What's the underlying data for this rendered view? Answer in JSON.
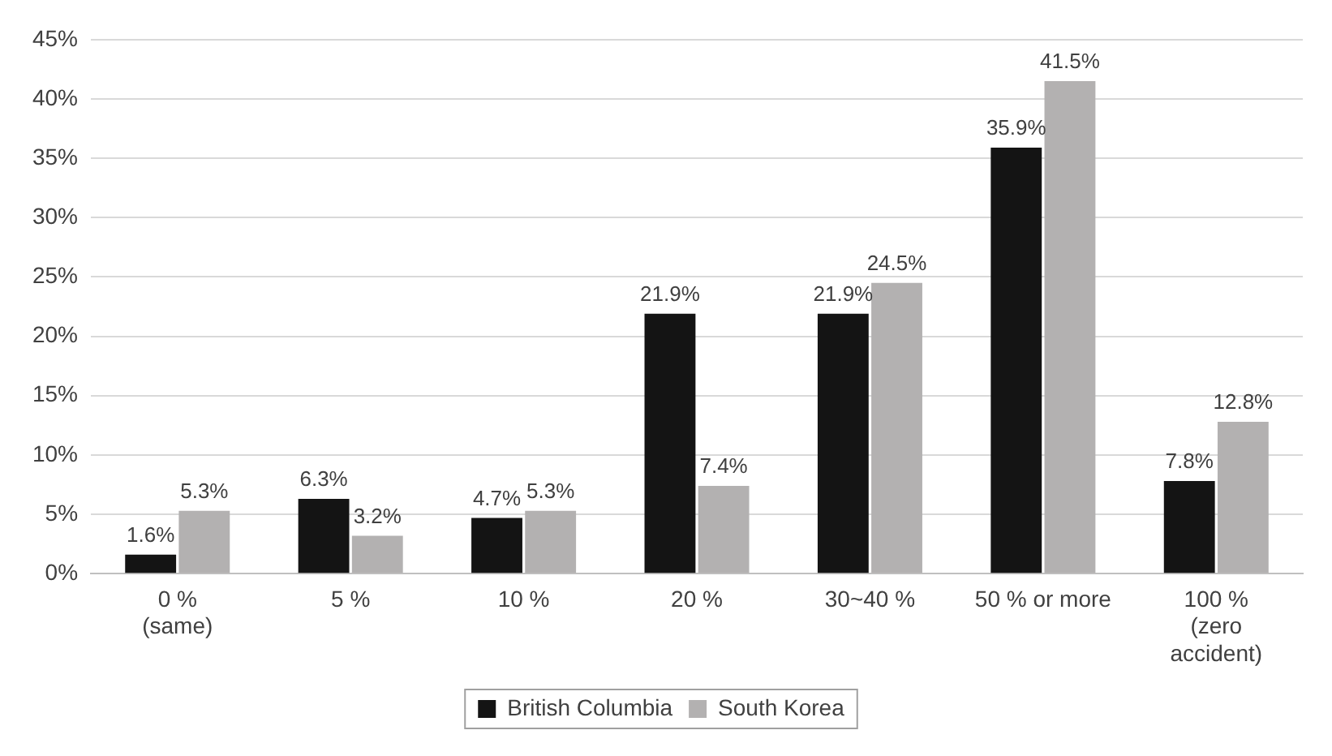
{
  "chart_data": {
    "type": "bar",
    "categories": [
      "0 %\n(same)",
      "5 %",
      "10 %",
      "20 %",
      "30~40 %",
      "50 % or more",
      "100 %\n(zero\naccident)"
    ],
    "series": [
      {
        "name": "British Columbia",
        "color": "#141414",
        "values": [
          1.6,
          6.3,
          4.7,
          21.9,
          21.9,
          35.9,
          7.8
        ],
        "value_labels": [
          "1.6%",
          "6.3%",
          "4.7%",
          "21.9%",
          "21.9%",
          "35.9%",
          "7.8%"
        ]
      },
      {
        "name": "South Korea",
        "color": "#b3b1b1",
        "values": [
          5.3,
          3.2,
          5.3,
          7.4,
          24.5,
          41.5,
          12.8
        ],
        "value_labels": [
          "5.3%",
          "3.2%",
          "5.3%",
          "7.4%",
          "24.5%",
          "41.5%",
          "12.8%"
        ]
      }
    ],
    "ylim": [
      0,
      45
    ],
    "yticks": [
      {
        "value": 0,
        "label": "0%"
      },
      {
        "value": 5,
        "label": "5%"
      },
      {
        "value": 10,
        "label": "10%"
      },
      {
        "value": 15,
        "label": "15%"
      },
      {
        "value": 20,
        "label": "20%"
      },
      {
        "value": 25,
        "label": "25%"
      },
      {
        "value": 30,
        "label": "30%"
      },
      {
        "value": 35,
        "label": "35%"
      },
      {
        "value": 40,
        "label": "40%"
      },
      {
        "value": 45,
        "label": "45%"
      }
    ],
    "grid": "y",
    "legend": "bottom"
  }
}
